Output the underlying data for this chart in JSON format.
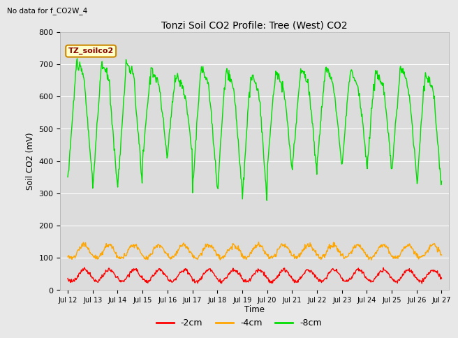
{
  "title": "Tonzi Soil CO2 Profile: Tree (West) CO2",
  "annotation": "No data for f_CO2W_4",
  "ylabel": "Soil CO2 (mV)",
  "xlabel": "Time",
  "ylim": [
    0,
    800
  ],
  "yticks": [
    0,
    100,
    200,
    300,
    400,
    500,
    600,
    700,
    800
  ],
  "tick_labels": [
    "Jul 12",
    "Jul 13",
    "Jul 14",
    "Jul 15",
    "Jul 16",
    "Jul 17",
    "Jul 18",
    "Jul 19",
    "Jul 20",
    "Jul 21",
    "Jul 22",
    "Jul 23",
    "Jul 24",
    "Jul 25",
    "Jul 26",
    "Jul 27"
  ],
  "color_2cm": "#ff0000",
  "color_4cm": "#ffa500",
  "color_8cm": "#00dd00",
  "fig_bg": "#e8e8e8",
  "plot_bg": "#dcdcdc",
  "legend_label": "TZ_soilco2",
  "legend_bg": "#ffffcc",
  "legend_border": "#cc8800",
  "n_days": 15,
  "pts_per_day": 48
}
